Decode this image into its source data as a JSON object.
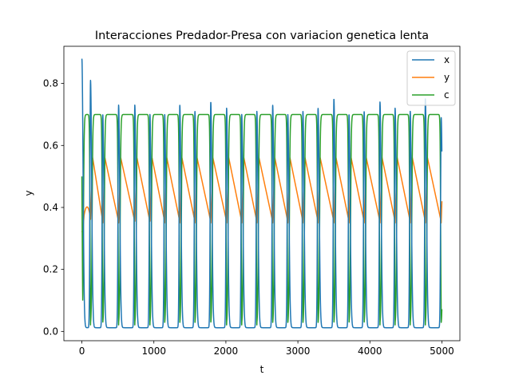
{
  "chart_data": {
    "type": "line",
    "title": "Interacciones Predador-Presa con variacion genetica lenta",
    "xlabel": "t",
    "ylabel": "y",
    "xlim": [
      -250,
      5250
    ],
    "ylim": [
      -0.03,
      0.92
    ],
    "xticks": [
      0,
      1000,
      2000,
      3000,
      4000,
      5000
    ],
    "yticks": [
      0.0,
      0.2,
      0.4,
      0.6,
      0.8
    ],
    "xtick_labels": [
      "0",
      "1000",
      "2000",
      "3000",
      "4000",
      "5000"
    ],
    "ytick_labels": [
      "0.0",
      "0.2",
      "0.4",
      "0.6",
      "0.8"
    ],
    "grid": false,
    "legend_position": "top-right",
    "t_end": 5000,
    "series": [
      {
        "name": "x",
        "color": "#1f77b4",
        "baseline": 0.012,
        "peak_times": [
          0,
          120,
          290,
          510,
          735,
          945,
          1150,
          1360,
          1570,
          1790,
          2010,
          2220,
          2430,
          2650,
          2860,
          3070,
          3280,
          3500,
          3710,
          3920,
          4140,
          4350,
          4560,
          4770,
          4990
        ],
        "peak_values": [
          0.88,
          0.81,
          0.7,
          0.73,
          0.73,
          0.7,
          0.7,
          0.73,
          0.71,
          0.74,
          0.72,
          0.7,
          0.71,
          0.73,
          0.7,
          0.71,
          0.72,
          0.75,
          0.7,
          0.71,
          0.74,
          0.72,
          0.71,
          0.75,
          0.69
        ]
      },
      {
        "name": "y",
        "color": "#ff7f0e",
        "min_value": 0.35,
        "max_value": 0.56,
        "start_value": 0.3
      },
      {
        "name": "c",
        "color": "#2ca02c",
        "high_value": 0.7,
        "low_value": 0.02,
        "start_value": 0.5
      }
    ]
  }
}
